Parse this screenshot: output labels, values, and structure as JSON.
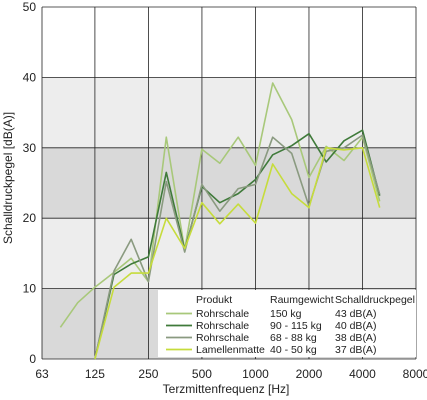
{
  "chart_data": {
    "type": "line",
    "xlabel": "Terzmittenfrequenz  [Hz]",
    "ylabel": "Schalldruckpegel  [dB(A)]",
    "xscale": "log",
    "xlim": [
      63,
      8000
    ],
    "ylim": [
      0,
      50
    ],
    "x_ticks": [
      "63",
      "125",
      "250",
      "500",
      "1000",
      "2000",
      "4000",
      "8000"
    ],
    "y_ticks": [
      0,
      10,
      20,
      30,
      40,
      50
    ],
    "grid": true,
    "band_colors": [
      "#ffffff",
      "#ededed",
      "#d9d9d9"
    ],
    "legend": {
      "header": [
        "Produkt",
        "Raumgewicht",
        "Schalldruckpegel"
      ],
      "placement": "bottom-right",
      "rows": [
        {
          "product": "Rohrschale",
          "weight": "150 kg",
          "level": "43 dB(A)"
        },
        {
          "product": "Rohrschale",
          "weight": "90 - 115 kg",
          "level": "40 dB(A)"
        },
        {
          "product": "Rohrschale",
          "weight": "68 - 88 kg",
          "level": "38 dB(A)"
        },
        {
          "product": "Lamellenmatte",
          "weight": "40 - 50 kg",
          "level": "37 dB(A)"
        }
      ]
    },
    "series": [
      {
        "name": "Rohrschale 150 kg",
        "color": "#a8c87a",
        "x": [
          80,
          100,
          125,
          160,
          200,
          250,
          315,
          400,
          500,
          630,
          800,
          1000,
          1250,
          1600,
          2000,
          2500,
          3150,
          4000,
          5000
        ],
        "y": [
          4.5,
          8,
          10.2,
          12.3,
          14.3,
          11,
          31.5,
          15.5,
          29.8,
          27.8,
          31.5,
          27.5,
          39.2,
          34,
          25.8,
          30.2,
          28.2,
          31.5,
          22.4
        ]
      },
      {
        "name": "Rohrschale 90 - 115 kg",
        "color": "#3f7a3a",
        "x": [
          125,
          160,
          200,
          250,
          315,
          400,
          500,
          630,
          800,
          1000,
          1250,
          1600,
          2000,
          2500,
          3150,
          4000,
          5000
        ],
        "y": [
          0,
          12,
          13.5,
          14.5,
          26.5,
          15.5,
          24.5,
          22.2,
          23.5,
          25.5,
          29,
          30.3,
          32,
          28,
          31,
          32.5,
          23.2
        ]
      },
      {
        "name": "Rohrschale 68 - 88 kg",
        "color": "#8a9a80",
        "x": [
          125,
          160,
          200,
          250,
          315,
          400,
          500,
          630,
          800,
          1000,
          1250,
          1600,
          2000,
          2500,
          3150,
          4000,
          5000
        ],
        "y": [
          0,
          12.5,
          17,
          11,
          25.2,
          15.2,
          24.8,
          21,
          24.2,
          24.8,
          31.5,
          29.2,
          21.7,
          29.5,
          30,
          31.8,
          23.4
        ]
      },
      {
        "name": "Lamellenmatte 40 - 50 kg",
        "color": "#c6dc3c",
        "x": [
          125,
          160,
          200,
          250,
          315,
          400,
          500,
          630,
          800,
          1000,
          1250,
          1600,
          2000,
          2500,
          3150,
          4000,
          5000
        ],
        "y": [
          0,
          10.2,
          12.2,
          12.2,
          20,
          15.7,
          22.2,
          19.2,
          22,
          19.3,
          27.7,
          23.5,
          21.5,
          30,
          29.7,
          30,
          21.5
        ]
      }
    ]
  }
}
